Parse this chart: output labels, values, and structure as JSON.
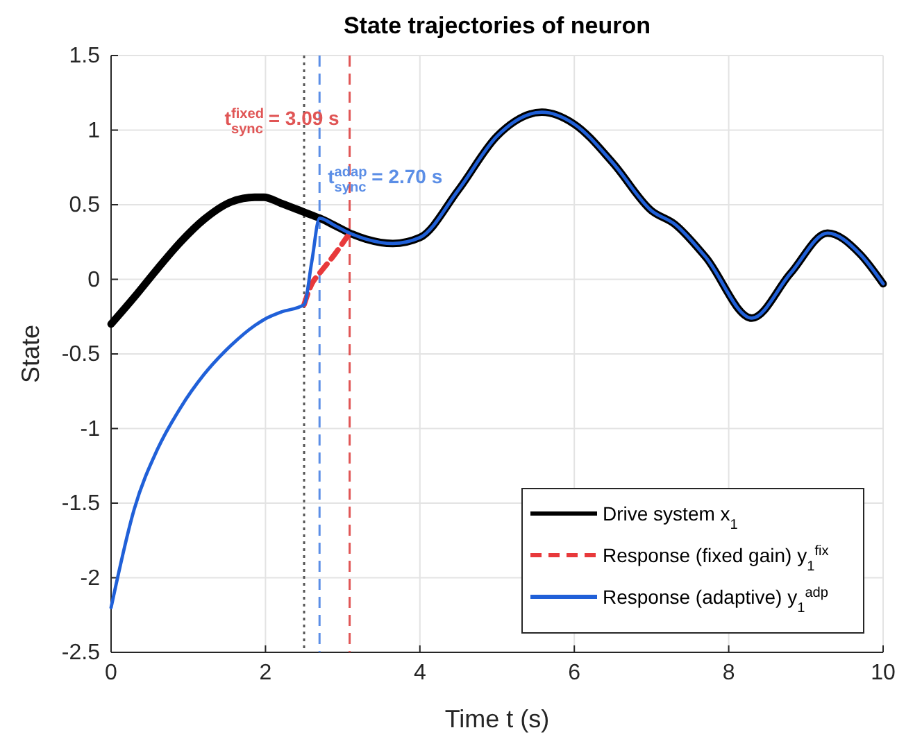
{
  "chart_data": {
    "type": "line",
    "title": "State trajectories of neuron",
    "xlabel": "Time t (s)",
    "ylabel": "State",
    "x": [
      0,
      0.3,
      0.6,
      0.9,
      1.2,
      1.56,
      1.86,
      1.98,
      2.2,
      2.5,
      2.6,
      2.7,
      2.9,
      3.09,
      3.3,
      3.65,
      4,
      4.5,
      5,
      5.58,
      6,
      6.5,
      7,
      7.3,
      7.7,
      8.3,
      8.8,
      9.28,
      9.7,
      10
    ],
    "series": [
      {
        "name": "Drive system x$_{1}$",
        "color": "#000000",
        "line_style": "solid",
        "values": [
          -0.3,
          -0.12,
          0.07,
          0.25,
          0.4,
          0.52,
          0.55,
          0.55,
          0.51,
          0.45,
          0.43,
          0.41,
          0.36,
          0.31,
          0.27,
          0.24,
          0.28,
          0.6,
          0.96,
          1.12,
          1.04,
          0.78,
          0.46,
          0.37,
          0.15,
          -0.26,
          0.04,
          0.31,
          0.17,
          -0.03
        ]
      },
      {
        "name": "Response (fixed gain) y$_{1}$$^{fix}$",
        "color": "#e8393b",
        "line_style": "dashed",
        "values": [
          null,
          null,
          null,
          null,
          null,
          null,
          null,
          null,
          null,
          -0.17,
          -0.03,
          0.04,
          0.17,
          0.31,
          null,
          null,
          null,
          null,
          null,
          null,
          null,
          null,
          null,
          null,
          null,
          null,
          null,
          null,
          null,
          null
        ]
      },
      {
        "name": "Response (adaptive) y$_{1}$$^{adp}$",
        "color": "#2060d8",
        "line_style": "solid",
        "values": [
          -2.2,
          -1.54,
          -1.14,
          -0.86,
          -0.64,
          -0.44,
          -0.31,
          -0.27,
          -0.22,
          -0.17,
          0.12,
          0.41,
          0.36,
          0.31,
          0.27,
          0.24,
          0.28,
          0.6,
          0.96,
          1.12,
          1.04,
          0.78,
          0.46,
          0.37,
          0.15,
          -0.26,
          0.04,
          0.31,
          0.17,
          -0.03
        ]
      }
    ],
    "xlim": [
      0,
      10
    ],
    "xticks": [
      0,
      2,
      4,
      6,
      8,
      10
    ],
    "ylim": [
      -2.5,
      1.5
    ],
    "yticks": [
      -2.5,
      -2,
      -1.5,
      -1,
      -0.5,
      0,
      0.5,
      1,
      1.5
    ],
    "ref_lines": [
      {
        "axis": "x",
        "value": 2.5,
        "color": "#555555",
        "line_style": "dotted"
      },
      {
        "axis": "x",
        "value": 2.7,
        "color": "#5b8ee6",
        "line_style": "dashed",
        "label": "t$^{adap}$$_{sync}$ = 2.70 s"
      },
      {
        "axis": "x",
        "value": 3.09,
        "color": "#e05555",
        "line_style": "dashed",
        "label": "t$^{fixed}$$_{sync}$ = 3.09 s"
      }
    ],
    "grid": true,
    "legend": "bottom right"
  }
}
